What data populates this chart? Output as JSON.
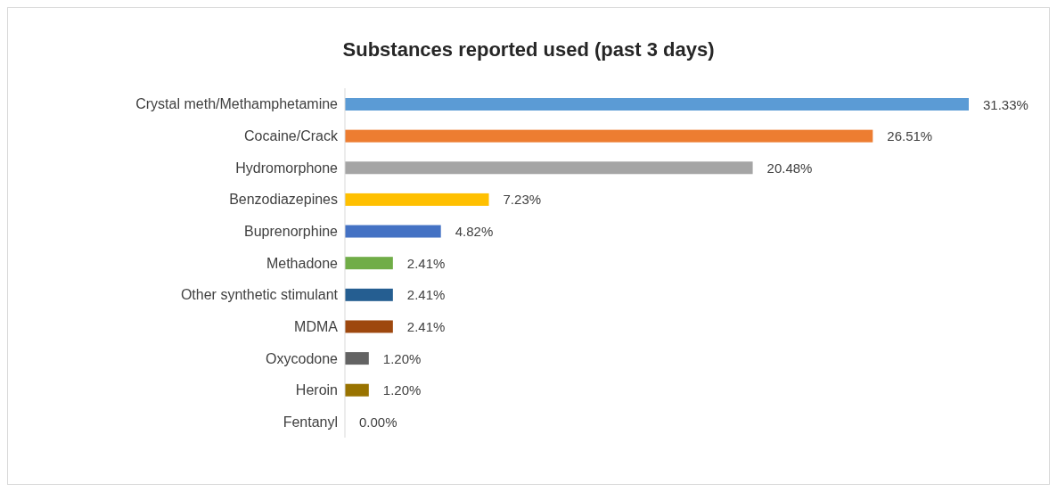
{
  "chart_data": {
    "type": "bar",
    "orientation": "horizontal",
    "title": "Substances reported used (past 3 days)",
    "categories": [
      "Crystal meth/Methamphetamine",
      "Cocaine/Crack",
      "Hydromorphone",
      "Benzodiazepines",
      "Buprenorphine",
      "Methadone",
      "Other synthetic stimulant",
      "MDMA",
      "Oxycodone",
      "Heroin",
      "Fentanyl"
    ],
    "values": [
      31.33,
      26.51,
      20.48,
      7.23,
      4.82,
      2.41,
      2.41,
      2.41,
      1.2,
      1.2,
      0
    ],
    "value_labels": [
      "31.33%",
      "26.51%",
      "20.48%",
      "7.23%",
      "4.82%",
      "2.41%",
      "2.41%",
      "2.41%",
      "1.20%",
      "1.20%",
      "0.00%"
    ],
    "colors": [
      "#5b9bd5",
      "#ed7d31",
      "#a5a5a5",
      "#ffc000",
      "#4472c4",
      "#70ad47",
      "#255e91",
      "#9e480e",
      "#636363",
      "#997300",
      "#264478"
    ],
    "grid": false,
    "legend": false
  }
}
